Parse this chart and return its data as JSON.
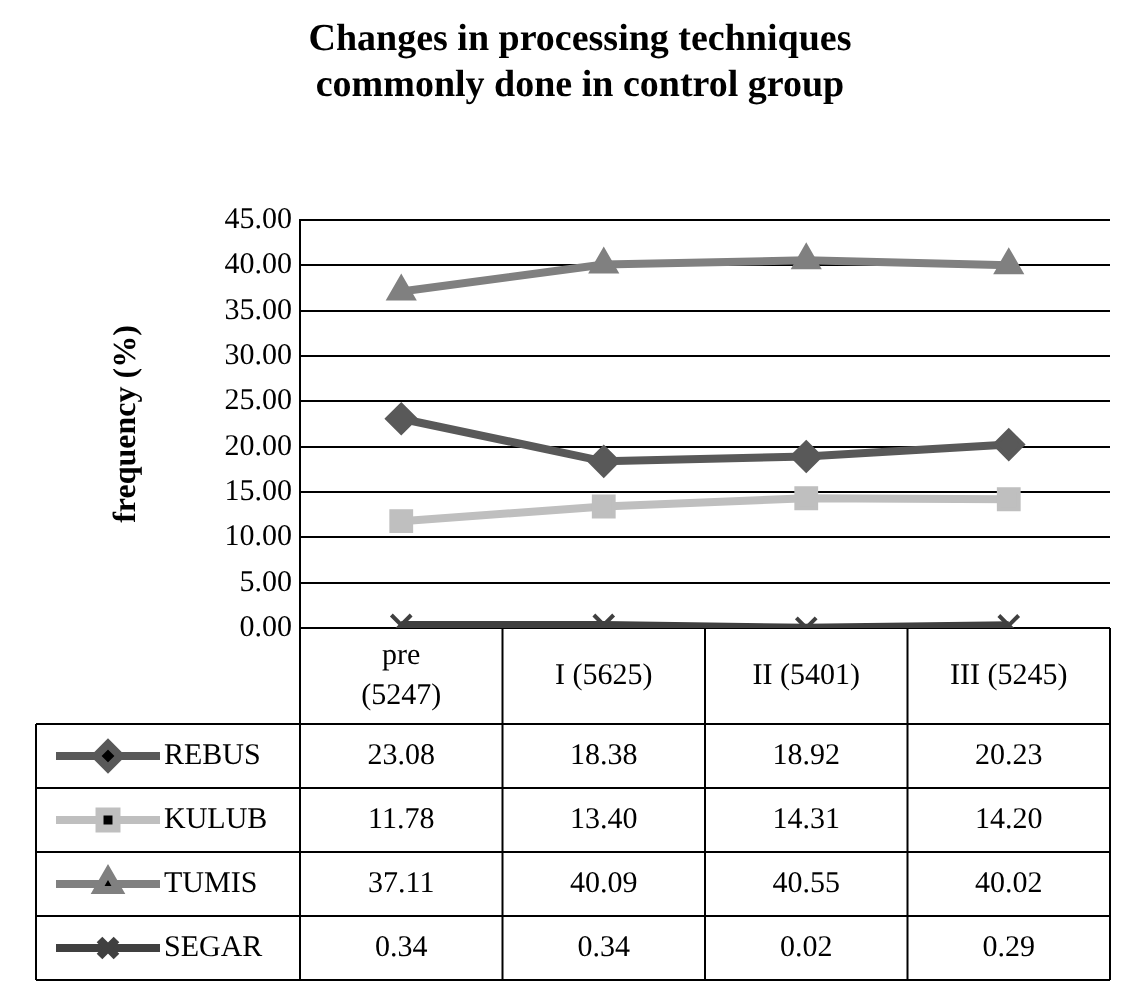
{
  "chart_data": {
    "type": "line",
    "title": "Changes in processing techniques commonly done in control group",
    "ylabel": "frequency (%)",
    "categories": [
      "pre (5247)",
      "I (5625)",
      "II (5401)",
      "III (5245)"
    ],
    "series": [
      {
        "name": "REBUS",
        "color": "#595959",
        "marker": "diamond",
        "values": [
          23.08,
          18.38,
          18.92,
          20.23
        ],
        "value_labels": [
          "23.08",
          "18.38",
          "18.92",
          "20.23"
        ]
      },
      {
        "name": "KULUB",
        "color": "#bfbfbf",
        "marker": "square",
        "values": [
          11.78,
          13.4,
          14.31,
          14.2
        ],
        "value_labels": [
          "11.78",
          "13.40",
          "14.31",
          "14.20"
        ]
      },
      {
        "name": "TUMIS",
        "color": "#808080",
        "marker": "triangle",
        "values": [
          37.11,
          40.09,
          40.55,
          40.02
        ],
        "value_labels": [
          "37.11",
          "40.09",
          "40.55",
          "40.02"
        ]
      },
      {
        "name": "SEGAR",
        "color": "#404040",
        "marker": "cross",
        "values": [
          0.34,
          0.34,
          0.02,
          0.29
        ],
        "value_labels": [
          "0.34",
          "0.34",
          "0.02",
          "0.29"
        ]
      }
    ],
    "ylim": [
      0,
      45
    ],
    "yticks": [
      {
        "value": 0,
        "label": "0.00"
      },
      {
        "value": 5,
        "label": "5.00"
      },
      {
        "value": 10,
        "label": "10.00"
      },
      {
        "value": 15,
        "label": "15.00"
      },
      {
        "value": 20,
        "label": "20.00"
      },
      {
        "value": 25,
        "label": "25.00"
      },
      {
        "value": 30,
        "label": "30.00"
      },
      {
        "value": 35,
        "label": "35.00"
      },
      {
        "value": 40,
        "label": "40.00"
      },
      {
        "value": 45,
        "label": "45.00"
      }
    ],
    "grid": "y",
    "legend": "bottom",
    "line_style": "solid"
  }
}
